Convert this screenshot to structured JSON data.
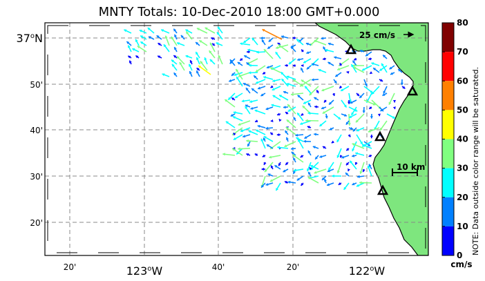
{
  "title": "MNTY Totals: 10-Dec-2010 18:00 GMT+0.000",
  "lat_labels": [
    {
      "deg": "37",
      "sup": "o",
      "suffix": "N"
    },
    {
      "text": "50'"
    },
    {
      "text": "40'"
    },
    {
      "text": "30'"
    },
    {
      "text": "20'"
    }
  ],
  "lon_labels": [
    {
      "text": "20'"
    },
    {
      "deg": "123",
      "sup": "o",
      "suffix": "W"
    },
    {
      "text": "40'"
    },
    {
      "text": "20'"
    },
    {
      "deg": "122",
      "sup": "o",
      "suffix": "W"
    }
  ],
  "speed_reference": "25 cm/s",
  "distance_scale": "10 km",
  "colorbar": {
    "ticks": [
      "80",
      "70",
      "60",
      "50",
      "40",
      "30",
      "20",
      "10",
      "0"
    ],
    "unit": "cm/s",
    "note": "NOTE: Data outside color range will be saturated.",
    "colors": [
      "#800000",
      "#ff0000",
      "#ff8000",
      "#ffff00",
      "#80ff80",
      "#00ffff",
      "#0080ff",
      "#0000ff"
    ]
  },
  "colors": {
    "land": "#7ee67e",
    "coastline": "#000000",
    "gridline": "#888888"
  },
  "stations": [
    "station-1",
    "station-2",
    "station-3",
    "station-4"
  ]
}
